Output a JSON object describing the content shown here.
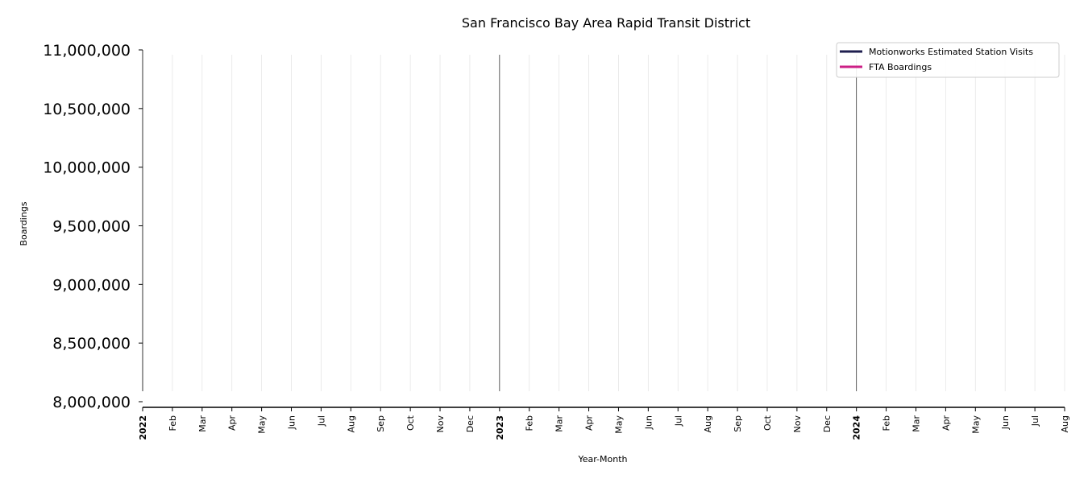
{
  "chart_data": {
    "type": "line",
    "title": "San Francisco Bay Area Rapid Transit District",
    "xlabel": "Year-Month",
    "ylabel": "Boardings",
    "ylim": [
      8000000,
      11000000
    ],
    "yticks": [
      8000000,
      8500000,
      9000000,
      9500000,
      10000000,
      10500000,
      11000000
    ],
    "ytick_labels": [
      "8,000,000",
      "8,500,000",
      "9,000,000",
      "9,500,000",
      "10,000,000",
      "10,500,000",
      "11,000,000"
    ],
    "xlim": [
      "2022-01",
      "2024-08"
    ],
    "x_ticks": [
      {
        "date": "2022-01",
        "label": "2022",
        "year": true
      },
      {
        "date": "2022-02",
        "label": "Feb"
      },
      {
        "date": "2022-03",
        "label": "Mar"
      },
      {
        "date": "2022-04",
        "label": "Apr"
      },
      {
        "date": "2022-05",
        "label": "May"
      },
      {
        "date": "2022-06",
        "label": "Jun"
      },
      {
        "date": "2022-07",
        "label": "Jul"
      },
      {
        "date": "2022-08",
        "label": "Aug"
      },
      {
        "date": "2022-09",
        "label": "Sep"
      },
      {
        "date": "2022-10",
        "label": "Oct"
      },
      {
        "date": "2022-11",
        "label": "Nov"
      },
      {
        "date": "2022-12",
        "label": "Dec"
      },
      {
        "date": "2023-01",
        "label": "2023",
        "year": true
      },
      {
        "date": "2023-02",
        "label": "Feb"
      },
      {
        "date": "2023-03",
        "label": "Mar"
      },
      {
        "date": "2023-04",
        "label": "Apr"
      },
      {
        "date": "2023-05",
        "label": "May"
      },
      {
        "date": "2023-06",
        "label": "Jun"
      },
      {
        "date": "2023-07",
        "label": "Jul"
      },
      {
        "date": "2023-08",
        "label": "Aug"
      },
      {
        "date": "2023-09",
        "label": "Sep"
      },
      {
        "date": "2023-10",
        "label": "Oct"
      },
      {
        "date": "2023-11",
        "label": "Nov"
      },
      {
        "date": "2023-12",
        "label": "Dec"
      },
      {
        "date": "2024-01",
        "label": "2024",
        "year": true
      },
      {
        "date": "2024-02",
        "label": "Feb"
      },
      {
        "date": "2024-03",
        "label": "Mar"
      },
      {
        "date": "2024-04",
        "label": "Apr"
      },
      {
        "date": "2024-05",
        "label": "May"
      },
      {
        "date": "2024-06",
        "label": "Jun"
      },
      {
        "date": "2024-07",
        "label": "Jul"
      },
      {
        "date": "2024-08",
        "label": "Aug"
      }
    ],
    "series": [
      {
        "name": "Motionworks Estimated Station Visits",
        "color": "#1f1f4f",
        "x": [],
        "values": []
      },
      {
        "name": "FTA Boardings",
        "color": "#cc1f86",
        "x": [],
        "values": []
      }
    ],
    "grid": true,
    "grid_color": "#e6e6e6",
    "legend_position": "top-right"
  }
}
